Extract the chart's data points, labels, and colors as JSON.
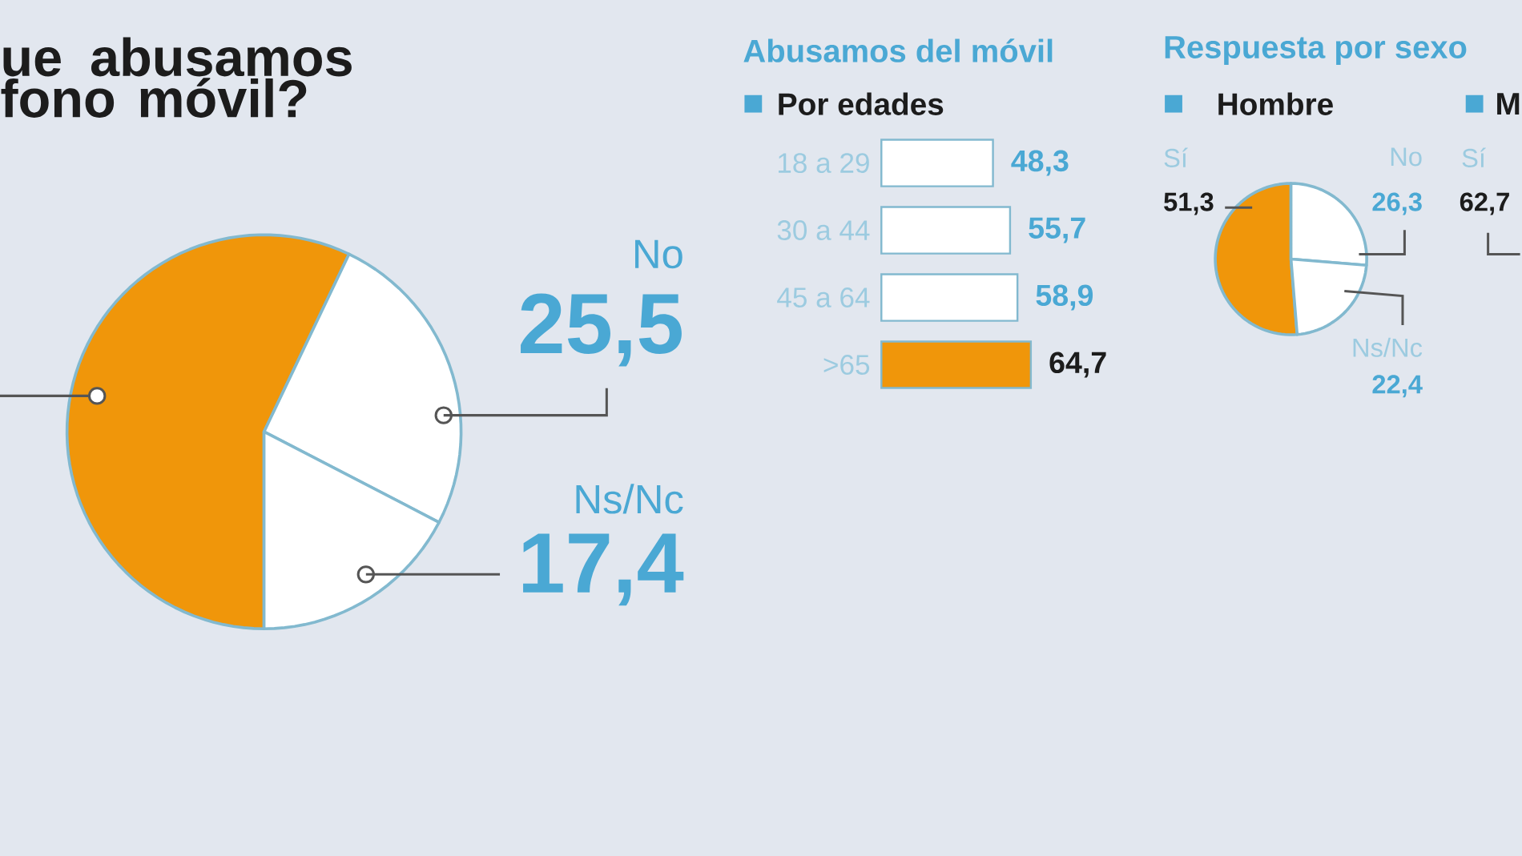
{
  "chart_data": [
    {
      "type": "pie",
      "title": "ue abusamos fono móvil?",
      "categories": [
        null,
        "No",
        "Ns/Nc"
      ],
      "values": [
        57.1,
        25.5,
        17.4
      ],
      "colors": [
        "#f0960a",
        "#ffffff",
        "#ffffff"
      ],
      "value_labels": [
        null,
        "25,5",
        "17,4"
      ]
    },
    {
      "type": "bar",
      "title": "Abusamos del móvil",
      "subtitle": "Por edades",
      "orientation": "horizontal",
      "categories": [
        "18 a 29",
        "30 a 44",
        "45 a 64",
        ">65"
      ],
      "values": [
        48.3,
        55.7,
        58.9,
        64.7
      ],
      "colors": [
        "#ffffff",
        "#ffffff",
        "#ffffff",
        "#f0960a"
      ],
      "value_labels": [
        "48,3",
        "55,7",
        "58,9",
        "64,7"
      ]
    },
    {
      "type": "pie",
      "title": "Respuesta por sexo",
      "subtitle": "Hombre",
      "categories": [
        "Sí",
        "No",
        "Ns/Nc"
      ],
      "values": [
        51.3,
        26.3,
        22.4
      ],
      "colors": [
        "#f0960a",
        "#ffffff",
        "#ffffff"
      ],
      "value_labels": [
        "51,3",
        "26,3",
        "22,4"
      ]
    },
    {
      "type": "other",
      "subtitle": "M",
      "annotations": [
        "Sí",
        "62,7"
      ]
    }
  ]
}
